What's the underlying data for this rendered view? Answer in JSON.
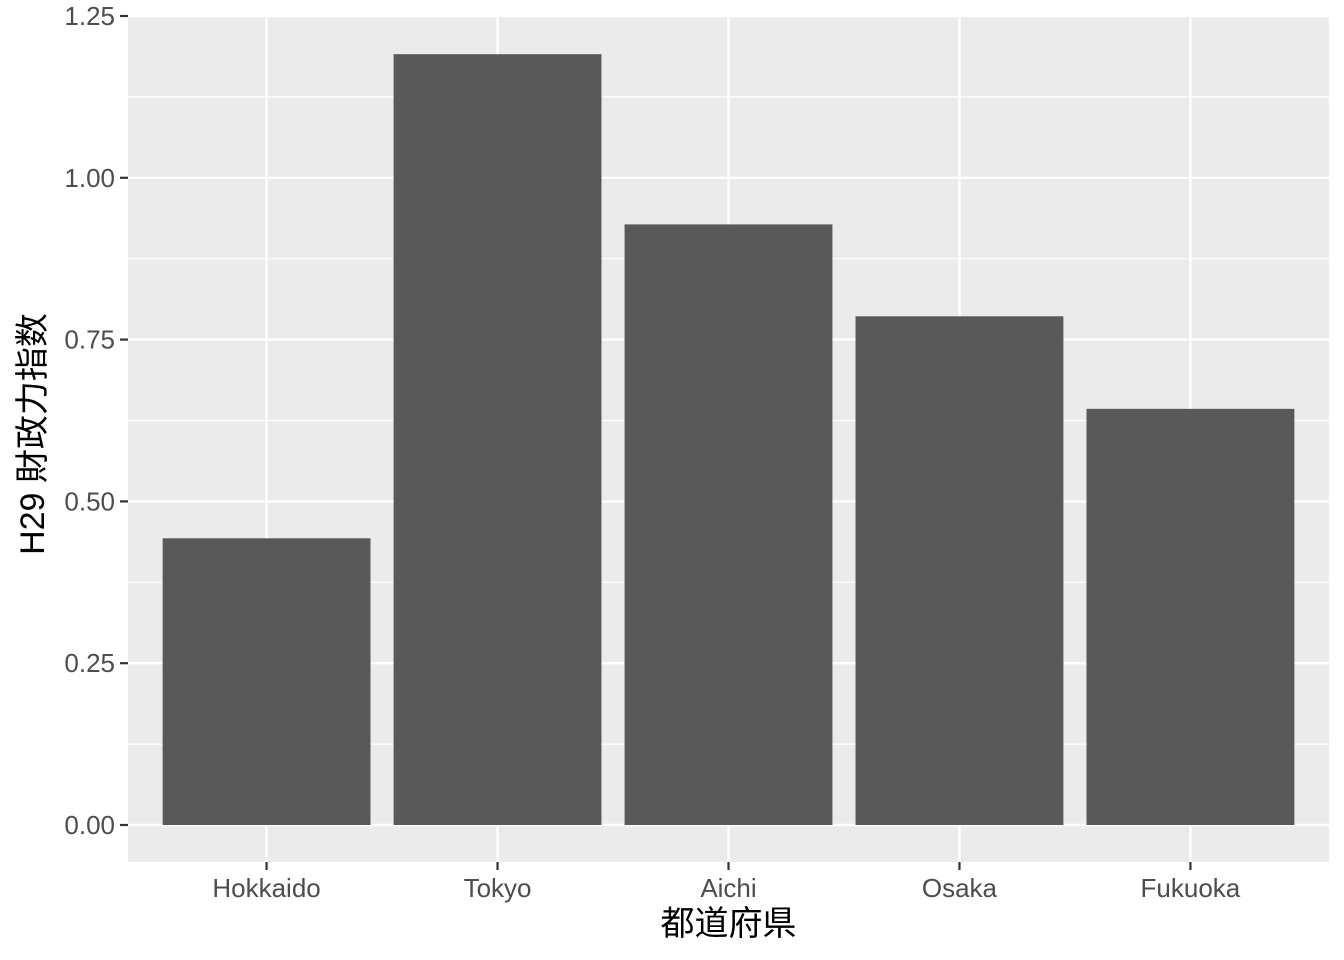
{
  "chart_data": {
    "type": "bar",
    "categories": [
      "Hokkaido",
      "Tokyo",
      "Aichi",
      "Osaka",
      "Fukuoka"
    ],
    "values": [
      0.443,
      1.191,
      0.928,
      0.786,
      0.643
    ],
    "title": "",
    "xlabel": "都道府県",
    "ylabel": "H29 財政力指数",
    "ylim": [
      0,
      1.25
    ],
    "yticks": [
      0,
      0.25,
      0.5,
      0.75,
      1.0,
      1.25
    ],
    "ytick_labels": [
      "0.00",
      "0.25",
      "0.50",
      "0.75",
      "1.00",
      "1.25"
    ],
    "grid": true,
    "legend": "none",
    "colors": {
      "bar": "#595959",
      "panel": "#ebebeb",
      "grid": "#ffffff",
      "tick": "#333333"
    }
  }
}
